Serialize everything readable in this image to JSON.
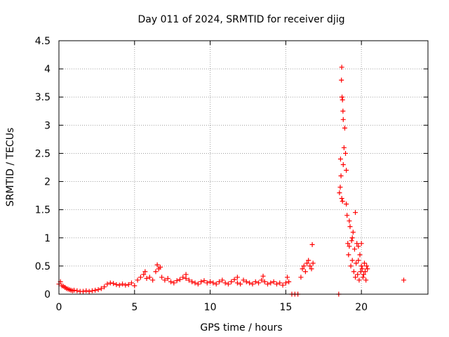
{
  "chart_data": {
    "type": "scatter",
    "title": "Day 011 of 2024, SRMTID for receiver djig",
    "xlabel": "GPS time / hours",
    "ylabel": "SRMTID / TECUs",
    "xlim": [
      0,
      24.4
    ],
    "ylim": [
      0,
      4.5
    ],
    "xticks": [
      0,
      5,
      10,
      15,
      20
    ],
    "yticks": [
      0,
      0.5,
      1,
      1.5,
      2,
      2.5,
      3,
      3.5,
      4,
      4.5
    ],
    "xtick_labels": [
      "0",
      "5",
      "10",
      "15",
      "20"
    ],
    "ytick_labels": [
      "0",
      "0.5",
      "1",
      "1.5",
      "2",
      "2.5",
      "3",
      "3.5",
      "4",
      "4.5"
    ],
    "grid": true,
    "marker": "plus",
    "series": [
      {
        "name": "SRMTID",
        "color": "#ff0000",
        "x": [
          0.0,
          0.1,
          0.2,
          0.3,
          0.4,
          0.5,
          0.6,
          0.7,
          0.8,
          0.9,
          1.0,
          1.2,
          1.4,
          1.6,
          1.8,
          2.0,
          2.2,
          2.4,
          2.6,
          2.8,
          3.0,
          3.2,
          3.4,
          3.6,
          3.8,
          4.0,
          4.2,
          4.4,
          4.6,
          4.8,
          5.0,
          5.2,
          5.4,
          5.6,
          5.8,
          6.0,
          6.2,
          6.4,
          6.6,
          6.8,
          7.0,
          7.2,
          7.4,
          7.6,
          7.8,
          8.0,
          8.2,
          8.4,
          8.6,
          8.8,
          9.0,
          9.2,
          9.4,
          9.6,
          9.8,
          10.0,
          10.2,
          10.4,
          10.6,
          10.8,
          11.0,
          11.2,
          11.4,
          11.6,
          11.8,
          12.0,
          12.2,
          12.4,
          12.6,
          12.8,
          13.0,
          13.2,
          13.4,
          13.6,
          13.8,
          14.0,
          14.2,
          14.4,
          14.6,
          14.8,
          15.0,
          15.2,
          15.4,
          15.6,
          15.8,
          16.0,
          16.1,
          16.2,
          16.3,
          16.4,
          16.5,
          16.6,
          16.7,
          16.8,
          18.5,
          18.55,
          18.6,
          18.65,
          18.7,
          18.75,
          18.8,
          18.85,
          18.9,
          18.95,
          19.0,
          19.05,
          19.1,
          19.15,
          19.2,
          19.25,
          19.3,
          19.35,
          19.4,
          19.45,
          19.5,
          19.55,
          19.6,
          19.65,
          19.7,
          19.75,
          19.8,
          19.85,
          19.9,
          19.95,
          20.0,
          20.05,
          20.1,
          20.15,
          20.2,
          20.25,
          20.3,
          20.35,
          20.4,
          22.8,
          18.7,
          18.75,
          18.8,
          18.72,
          18.78,
          18.68,
          18.62,
          19.0,
          19.2,
          19.4,
          19.6,
          19.8,
          20.0,
          5.7,
          6.5,
          6.7,
          8.4,
          11.8,
          13.5,
          15.1,
          16.75
        ],
        "y": [
          0.18,
          0.22,
          0.15,
          0.14,
          0.12,
          0.1,
          0.09,
          0.08,
          0.07,
          0.06,
          0.07,
          0.06,
          0.05,
          0.05,
          0.06,
          0.05,
          0.06,
          0.07,
          0.08,
          0.1,
          0.13,
          0.18,
          0.2,
          0.19,
          0.17,
          0.16,
          0.18,
          0.16,
          0.17,
          0.2,
          0.15,
          0.25,
          0.3,
          0.35,
          0.28,
          0.3,
          0.25,
          0.4,
          0.45,
          0.3,
          0.25,
          0.28,
          0.22,
          0.2,
          0.24,
          0.26,
          0.3,
          0.28,
          0.25,
          0.22,
          0.2,
          0.18,
          0.22,
          0.24,
          0.2,
          0.22,
          0.2,
          0.18,
          0.22,
          0.25,
          0.2,
          0.18,
          0.22,
          0.26,
          0.2,
          0.18,
          0.25,
          0.22,
          0.2,
          0.18,
          0.22,
          0.2,
          0.25,
          0.22,
          0.18,
          0.2,
          0.22,
          0.18,
          0.2,
          0.16,
          0.2,
          0.22,
          0.0,
          0.0,
          0.0,
          0.3,
          0.45,
          0.5,
          0.4,
          0.55,
          0.6,
          0.5,
          0.45,
          0.55,
          0.0,
          1.8,
          1.9,
          2.1,
          1.7,
          1.65,
          2.3,
          2.6,
          2.95,
          2.5,
          2.2,
          1.4,
          0.9,
          0.7,
          0.85,
          1.2,
          0.5,
          0.95,
          0.6,
          1.1,
          0.4,
          0.8,
          0.3,
          0.55,
          0.9,
          0.35,
          0.6,
          0.25,
          0.7,
          0.4,
          0.5,
          0.45,
          0.3,
          0.35,
          0.55,
          0.4,
          0.25,
          0.5,
          0.45,
          0.25,
          4.03,
          3.45,
          3.1,
          3.5,
          3.25,
          3.8,
          2.4,
          1.6,
          1.3,
          1.0,
          1.45,
          0.85,
          0.9,
          0.4,
          0.52,
          0.48,
          0.35,
          0.3,
          0.32,
          0.3,
          0.88
        ]
      }
    ]
  }
}
